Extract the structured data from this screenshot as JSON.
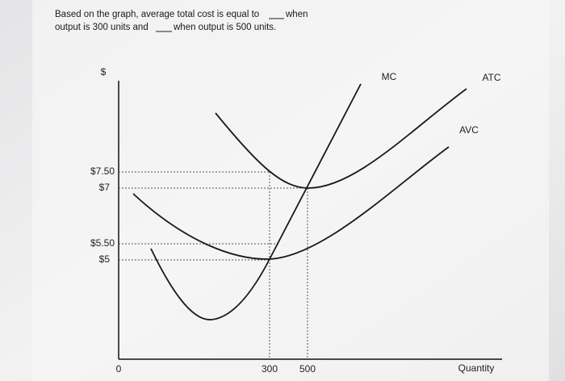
{
  "question": {
    "line1_start": "Based on the graph, average total cost is equal to",
    "line1_end": "when",
    "line2_start": "output is 300 units and",
    "line2_end": "when output is 500 units."
  },
  "graph": {
    "y_axis_label": "$",
    "x_axis_label": "Quantity",
    "y_ticks": [
      "$7.50",
      "$7",
      "$5.50",
      "$5"
    ],
    "x_ticks": [
      "0",
      "300",
      "500"
    ],
    "curves": [
      "MC",
      "ATC",
      "AVC"
    ]
  }
}
